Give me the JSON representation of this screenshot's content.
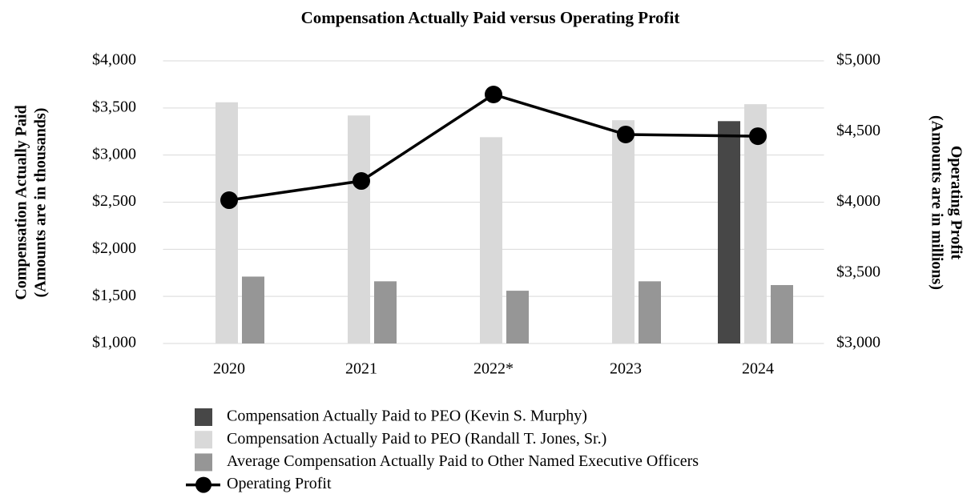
{
  "chart_data": {
    "type": "bar",
    "title": "Compensation Actually Paid versus Operating Profit",
    "y_label": [
      "Compensation Actually Paid",
      "(Amounts are in thousands)"
    ],
    "y2_label": [
      "Operating Profit",
      "(Amounts are in millions)"
    ],
    "categories": [
      "2020",
      "2021",
      "2022*",
      "2023",
      "2024"
    ],
    "ylim": [
      1000,
      4000
    ],
    "yticks": [
      {
        "value": 1000,
        "label": "$1,000"
      },
      {
        "value": 1500,
        "label": "$1,500"
      },
      {
        "value": 2000,
        "label": "$2,000"
      },
      {
        "value": 2500,
        "label": "$2,500"
      },
      {
        "value": 3000,
        "label": "$3,000"
      },
      {
        "value": 3500,
        "label": "$3,500"
      },
      {
        "value": 4000,
        "label": "$4,000"
      }
    ],
    "y2lim": [
      3000,
      5000
    ],
    "y2ticks": [
      {
        "value": 3000,
        "label": "$3,000"
      },
      {
        "value": 3500,
        "label": "$3,500"
      },
      {
        "value": 4000,
        "label": "$4,000"
      },
      {
        "value": 4500,
        "label": "$4,500"
      },
      {
        "value": 5000,
        "label": "$5,000"
      }
    ],
    "grid": true,
    "series": [
      {
        "name": "Compensation Actually Paid to PEO (Kevin S. Murphy)",
        "color": "#474747",
        "type": "bar",
        "values": [
          null,
          null,
          null,
          null,
          3360
        ]
      },
      {
        "name": "Compensation Actually Paid to PEO (Randall T. Jones, Sr.)",
        "color": "#d9d9d9",
        "type": "bar",
        "values": [
          3560,
          3420,
          3190,
          3370,
          3540
        ]
      },
      {
        "name": "Average Compensation Actually Paid to Other Named Executive Officers",
        "color": "#969696",
        "type": "bar",
        "values": [
          1710,
          1660,
          1560,
          1660,
          1620
        ]
      },
      {
        "name": "Operating Profit",
        "color": "#000000",
        "type": "line",
        "axis": "y2",
        "values": [
          4014,
          4150,
          4762,
          4479,
          4467
        ]
      }
    ]
  }
}
